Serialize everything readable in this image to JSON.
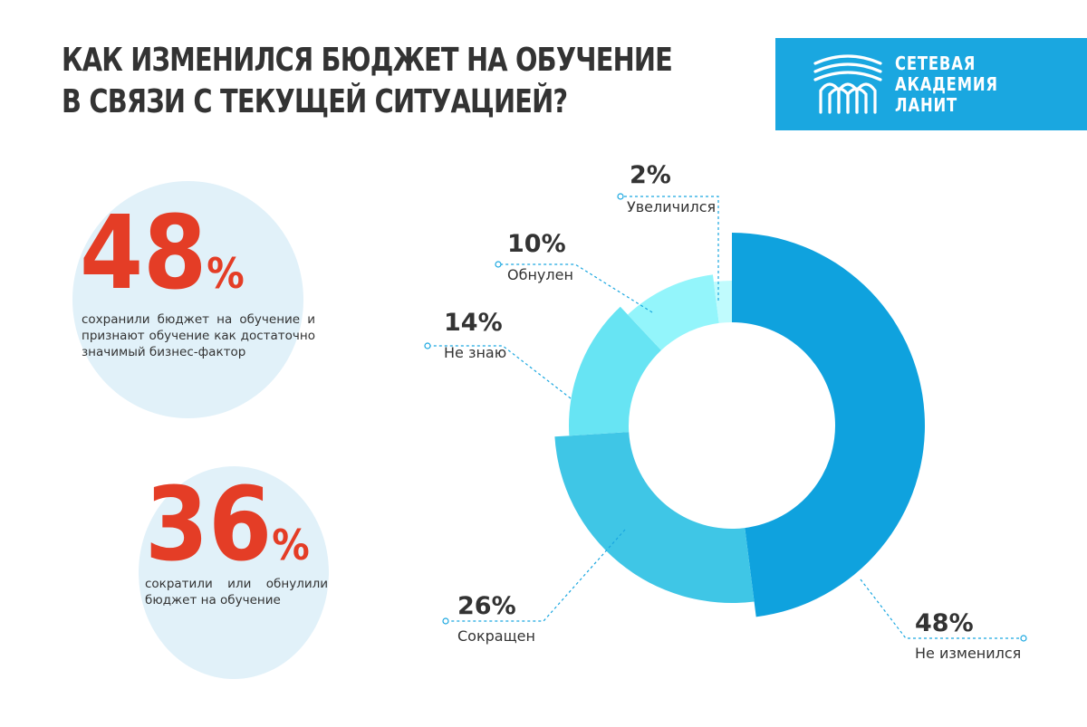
{
  "title": {
    "line1": "КАК ИЗМЕНИЛСЯ БЮДЖЕТ НА ОБУЧЕНИЕ",
    "line2": "В СВЯЗИ С ТЕКУЩЕЙ СИТУАЦИЕЙ?"
  },
  "logo": {
    "line1": "СЕТЕВАЯ",
    "line2": "АКАДЕМИЯ",
    "line3": "ЛАНИТ",
    "icon": "academy-arches-icon",
    "background": "#1aa7e0"
  },
  "stats": [
    {
      "number": "48",
      "unit": "%",
      "text": "сохранили бюджет на обучение и признают обучение как достаточно значимый бизнес-фактор"
    },
    {
      "number": "36",
      "unit": "%",
      "text": "сократили или обнулили бюджет на обучение"
    }
  ],
  "colors": {
    "accent_red": "#e43d26",
    "text": "#333333",
    "circle_bg": "#e1f1f9",
    "leader": "#1aa7e0"
  },
  "chart_data": {
    "type": "pie",
    "donut": true,
    "slices": [
      {
        "label": "Не изменился",
        "value": 48,
        "value_label": "48%",
        "color": "#0fa2de",
        "outer_r": 213,
        "inner_r": 114
      },
      {
        "label": "Сокращен",
        "value": 26,
        "value_label": "26%",
        "color": "#3fc6e6",
        "outer_r": 196,
        "inner_r": 114
      },
      {
        "label": "Не знаю",
        "value": 14,
        "value_label": "14%",
        "color": "#67e4f3",
        "outer_r": 180,
        "inner_r": 114
      },
      {
        "label": "Обнулен",
        "value": 10,
        "value_label": "10%",
        "color": "#93f5fb",
        "outer_r": 168,
        "inner_r": 114
      },
      {
        "label": "Увеличился",
        "value": 2,
        "value_label": "2%",
        "color": "#c0fbfd",
        "outer_r": 160,
        "inner_r": 114
      }
    ]
  }
}
